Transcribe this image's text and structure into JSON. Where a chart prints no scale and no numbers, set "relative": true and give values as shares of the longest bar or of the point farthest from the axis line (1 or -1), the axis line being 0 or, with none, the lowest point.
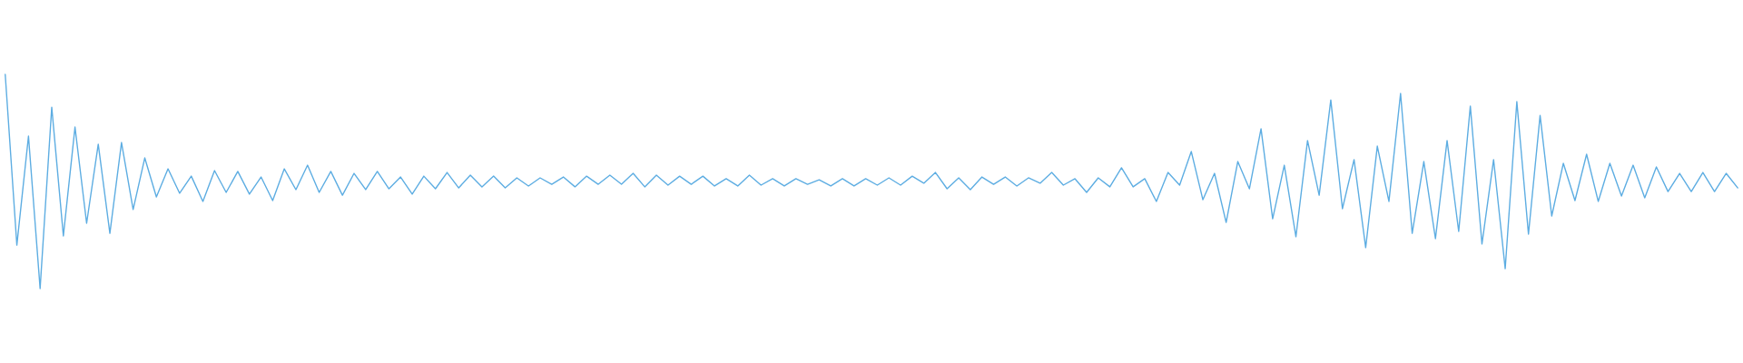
{
  "chart_data": {
    "type": "line",
    "relative": true,
    "categories": [
      null,
      null,
      null,
      null,
      null,
      null,
      null,
      null,
      null,
      null,
      null,
      null,
      null,
      null,
      null,
      null,
      null,
      null,
      null,
      null,
      null,
      null,
      null,
      null,
      null,
      null,
      null,
      null,
      null,
      null,
      null,
      null,
      null,
      null,
      null,
      null,
      null,
      null,
      null,
      null,
      null,
      null,
      null,
      null,
      null,
      null,
      null,
      null,
      null,
      null,
      null,
      null,
      null,
      null,
      null,
      null,
      null,
      null,
      null,
      null,
      null,
      null,
      null,
      null,
      null,
      null,
      null,
      null,
      null,
      null,
      null,
      null,
      null,
      null,
      null,
      null,
      null,
      null,
      null,
      null,
      null,
      null,
      null,
      null,
      null,
      null,
      null,
      null,
      null,
      null,
      null,
      null,
      null,
      null,
      null,
      null,
      null,
      null,
      null,
      null,
      null,
      null,
      null,
      null,
      null,
      null,
      null,
      null,
      null,
      null,
      null,
      null,
      null,
      null,
      null,
      null,
      null,
      null,
      null,
      null,
      null,
      null,
      null,
      null,
      null,
      null,
      null,
      null,
      null,
      null,
      null,
      null,
      null,
      null,
      null,
      null,
      null,
      null,
      null,
      null,
      null,
      null,
      null,
      null,
      null,
      null,
      null,
      null,
      null,
      null
    ],
    "series": [
      {
        "color": "#5dade2",
        "values": [
          1.0,
          0.203,
          0.712,
          0.0,
          0.847,
          0.246,
          0.754,
          0.305,
          0.674,
          0.258,
          0.682,
          0.369,
          0.61,
          0.428,
          0.559,
          0.445,
          0.525,
          0.407,
          0.551,
          0.449,
          0.547,
          0.441,
          0.521,
          0.411,
          0.559,
          0.462,
          0.576,
          0.449,
          0.547,
          0.436,
          0.538,
          0.462,
          0.547,
          0.466,
          0.521,
          0.441,
          0.525,
          0.466,
          0.542,
          0.47,
          0.53,
          0.475,
          0.525,
          0.47,
          0.517,
          0.479,
          0.517,
          0.487,
          0.521,
          0.475,
          0.525,
          0.487,
          0.53,
          0.487,
          0.538,
          0.475,
          0.53,
          0.483,
          0.525,
          0.487,
          0.525,
          0.479,
          0.513,
          0.479,
          0.53,
          0.483,
          0.513,
          0.479,
          0.513,
          0.487,
          0.508,
          0.479,
          0.513,
          0.479,
          0.513,
          0.483,
          0.517,
          0.483,
          0.525,
          0.492,
          0.542,
          0.466,
          0.517,
          0.462,
          0.521,
          0.487,
          0.521,
          0.479,
          0.517,
          0.492,
          0.542,
          0.483,
          0.513,
          0.449,
          0.517,
          0.475,
          0.564,
          0.475,
          0.513,
          0.407,
          0.542,
          0.483,
          0.64,
          0.415,
          0.538,
          0.309,
          0.593,
          0.466,
          0.746,
          0.326,
          0.576,
          0.242,
          0.691,
          0.436,
          0.881,
          0.373,
          0.602,
          0.191,
          0.665,
          0.407,
          0.911,
          0.258,
          0.593,
          0.233,
          0.691,
          0.267,
          0.852,
          0.208,
          0.602,
          0.093,
          0.873,
          0.254,
          0.809,
          0.339,
          0.585,
          0.411,
          0.627,
          0.407,
          0.585,
          0.432,
          0.576,
          0.424,
          0.568,
          0.453,
          0.538,
          0.453,
          0.542,
          0.453,
          0.538,
          0.47
        ]
      }
    ]
  }
}
